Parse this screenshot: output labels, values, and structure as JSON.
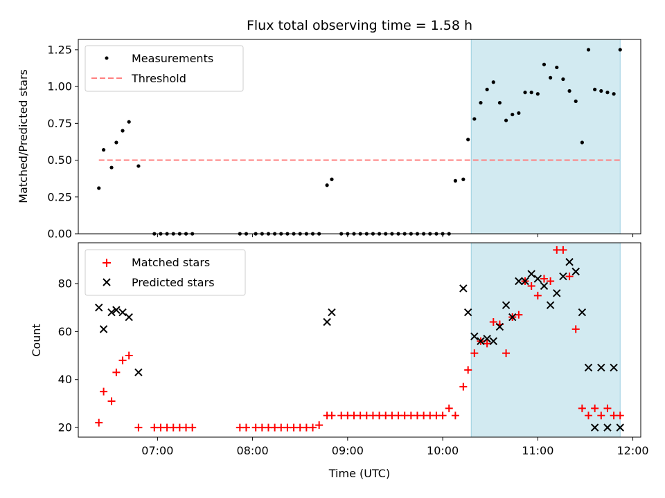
{
  "title": "Flux total observing time = 1.58 h",
  "chart_data": [
    {
      "type": "scatter",
      "panel": "top",
      "ylabel": "Matched/Predicted stars",
      "xlabel": "",
      "xlim": [
        "06:10",
        "12:05"
      ],
      "ylim": [
        0,
        1.32
      ],
      "y_ticks": [
        0.0,
        0.25,
        0.5,
        0.75,
        1.0,
        1.25
      ],
      "y_tick_labels": [
        "0.00",
        "0.25",
        "0.50",
        "0.75",
        "1.00",
        "1.25"
      ],
      "x_ticks": [
        "07:00",
        "08:00",
        "09:00",
        "10:00",
        "11:00",
        "12:00"
      ],
      "grid": false,
      "legend": "top-left",
      "shaded_region": {
        "start": "10:18",
        "end": "11:52",
        "color": "#add8e6"
      },
      "series": [
        {
          "name": "Measurements",
          "marker": "dot",
          "color": "#000000",
          "x": [
            "06:23",
            "06:26",
            "06:31",
            "06:34",
            "06:38",
            "06:42",
            "06:48",
            "06:58",
            "07:02",
            "07:06",
            "07:10",
            "07:14",
            "07:18",
            "07:22",
            "07:52",
            "07:56",
            "08:02",
            "08:06",
            "08:10",
            "08:14",
            "08:18",
            "08:22",
            "08:26",
            "08:30",
            "08:34",
            "08:38",
            "08:42",
            "08:47",
            "08:50",
            "08:56",
            "09:00",
            "09:04",
            "09:08",
            "09:12",
            "09:16",
            "09:20",
            "09:24",
            "09:28",
            "09:32",
            "09:36",
            "09:40",
            "09:44",
            "09:48",
            "09:52",
            "09:56",
            "10:00",
            "10:04",
            "10:08",
            "10:13",
            "10:16",
            "10:20",
            "10:24",
            "10:28",
            "10:32",
            "10:36",
            "10:40",
            "10:44",
            "10:48",
            "10:52",
            "10:56",
            "11:00",
            "11:04",
            "11:08",
            "11:12",
            "11:16",
            "11:20",
            "11:24",
            "11:28",
            "11:32",
            "11:36",
            "11:40",
            "11:44",
            "11:48",
            "11:52"
          ],
          "y": [
            0.31,
            0.57,
            0.45,
            0.62,
            0.7,
            0.76,
            0.46,
            0,
            0,
            0,
            0,
            0,
            0,
            0,
            0,
            0,
            0,
            0,
            0,
            0,
            0,
            0,
            0,
            0,
            0,
            0,
            0,
            0.33,
            0.37,
            0,
            0,
            0,
            0,
            0,
            0,
            0,
            0,
            0,
            0,
            0,
            0,
            0,
            0,
            0,
            0,
            0,
            0,
            0.36,
            0.37,
            0.64,
            0.78,
            0.89,
            0.98,
            1.03,
            0.89,
            0.77,
            0.81,
            0.82,
            0.96,
            0.96,
            0.95,
            1.15,
            1.06,
            1.13,
            1.05,
            0.97,
            0.9,
            0.62,
            1.25,
            0.98,
            0.97,
            0.96,
            0.95,
            1.25
          ]
        },
        {
          "name": "Threshold",
          "marker": "dashed-line",
          "color": "#ff7f7f",
          "x": [
            "06:23",
            "11:52"
          ],
          "y": [
            0.5,
            0.5
          ]
        }
      ]
    },
    {
      "type": "scatter",
      "panel": "bottom",
      "ylabel": "Count",
      "xlabel": "Time (UTC)",
      "xlim": [
        "06:10",
        "12:05"
      ],
      "ylim": [
        16,
        97
      ],
      "y_ticks": [
        20,
        40,
        60,
        80
      ],
      "y_tick_labels": [
        "20",
        "40",
        "60",
        "80"
      ],
      "x_ticks": [
        "07:00",
        "08:00",
        "09:00",
        "10:00",
        "11:00",
        "12:00"
      ],
      "grid": false,
      "legend": "top-left",
      "shaded_region": {
        "start": "10:18",
        "end": "11:52",
        "color": "#add8e6"
      },
      "series": [
        {
          "name": "Matched stars",
          "marker": "plus",
          "color": "#ff0000",
          "x": [
            "06:23",
            "06:26",
            "06:31",
            "06:34",
            "06:38",
            "06:42",
            "06:48",
            "06:58",
            "07:02",
            "07:06",
            "07:10",
            "07:14",
            "07:18",
            "07:22",
            "07:52",
            "07:56",
            "08:02",
            "08:06",
            "08:10",
            "08:14",
            "08:18",
            "08:22",
            "08:26",
            "08:30",
            "08:34",
            "08:38",
            "08:42",
            "08:47",
            "08:50",
            "08:56",
            "09:00",
            "09:04",
            "09:08",
            "09:12",
            "09:16",
            "09:20",
            "09:24",
            "09:28",
            "09:32",
            "09:36",
            "09:40",
            "09:44",
            "09:48",
            "09:52",
            "09:56",
            "10:00",
            "10:04",
            "10:08",
            "10:13",
            "10:16",
            "10:20",
            "10:24",
            "10:28",
            "10:32",
            "10:36",
            "10:40",
            "10:44",
            "10:48",
            "10:52",
            "10:56",
            "11:00",
            "11:04",
            "11:08",
            "11:12",
            "11:16",
            "11:20",
            "11:24",
            "11:28",
            "11:32",
            "11:36",
            "11:40",
            "11:44",
            "11:48",
            "11:52"
          ],
          "y": [
            22,
            35,
            31,
            43,
            48,
            50,
            20,
            20,
            20,
            20,
            20,
            20,
            20,
            20,
            20,
            20,
            20,
            20,
            20,
            20,
            20,
            20,
            20,
            20,
            20,
            20,
            21,
            25,
            25,
            25,
            25,
            25,
            25,
            25,
            25,
            25,
            25,
            25,
            25,
            25,
            25,
            25,
            25,
            25,
            25,
            25,
            28,
            25,
            37,
            44,
            51,
            56,
            55,
            64,
            63,
            51,
            66,
            67,
            81,
            79,
            75,
            82,
            81,
            94,
            94,
            83,
            61,
            28,
            25,
            28,
            25,
            28,
            25,
            25
          ]
        },
        {
          "name": "Predicted stars",
          "marker": "x",
          "color": "#000000",
          "x": [
            "06:23",
            "06:26",
            "06:31",
            "06:34",
            "06:38",
            "06:42",
            "06:48",
            "08:47",
            "08:50",
            "10:13",
            "10:16",
            "10:20",
            "10:24",
            "10:28",
            "10:32",
            "10:36",
            "10:40",
            "10:44",
            "10:48",
            "10:52",
            "10:56",
            "11:00",
            "11:04",
            "11:08",
            "11:12",
            "11:16",
            "11:20",
            "11:24",
            "11:28",
            "11:32",
            "11:36",
            "11:40",
            "11:44",
            "11:48",
            "11:52"
          ],
          "y": [
            70,
            61,
            68,
            69,
            68,
            66,
            43,
            64,
            68,
            78,
            68,
            58,
            56,
            57,
            56,
            62,
            71,
            66,
            81,
            81,
            84,
            82,
            79,
            71,
            76,
            83,
            89,
            85,
            68,
            45,
            20,
            45,
            20,
            45,
            20
          ]
        }
      ]
    }
  ]
}
